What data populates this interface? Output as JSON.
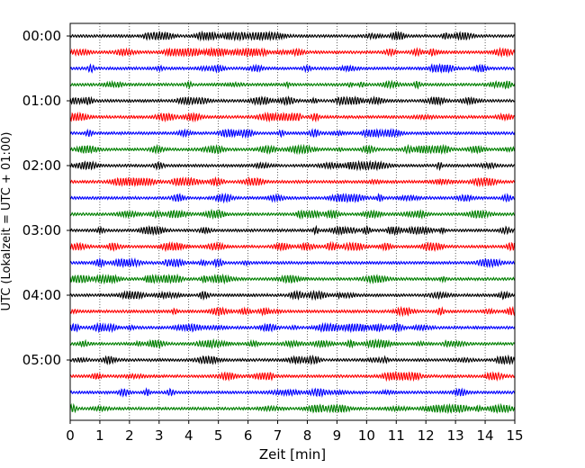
{
  "chart_data": {
    "type": "line",
    "title": "",
    "xlabel": "Zeit  [min]",
    "ylabel": "UTC (Lokalzeit = UTC + 01:00)",
    "xlim": [
      0,
      15
    ],
    "x_ticks": [
      "0",
      "1",
      "2",
      "3",
      "4",
      "5",
      "6",
      "7",
      "8",
      "9",
      "10",
      "11",
      "12",
      "13",
      "14",
      "15"
    ],
    "y_ticks": [
      "00:00",
      "01:00",
      "02:00",
      "03:00",
      "04:00",
      "05:00"
    ],
    "grid": "vertical dotted at each minute",
    "legend": "none",
    "trace_interval_minutes": 15,
    "trace_count": 24,
    "trace_colors": [
      "#000000",
      "#ff0000",
      "#0000ff",
      "#008000"
    ],
    "series_note": "one seismogram trace per 15-minute segment, colors cycling black, red, blue, green"
  }
}
